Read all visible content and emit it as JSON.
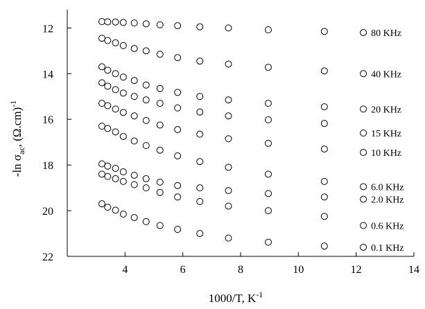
{
  "chart_data": {
    "type": "scatter",
    "title": "",
    "xlabel": "1000/T, K",
    "xlabel_sup": "-1",
    "ylabel_prefix": "-ln σ",
    "ylabel_sub": "ac",
    "ylabel_mid": ", (Ω.cm)",
    "ylabel_sup": "-1",
    "xlim": [
      2,
      14
    ],
    "ylim": [
      22,
      11.2
    ],
    "y_inverted": true,
    "x_ticks": [
      4,
      6,
      8,
      10,
      12,
      14
    ],
    "y_ticks": [
      12,
      14,
      16,
      18,
      20,
      22
    ],
    "x_tick_labels": [
      "4",
      "6",
      "8",
      "10",
      "12",
      "14"
    ],
    "y_tick_labels": [
      "12",
      "14",
      "16",
      "18",
      "20",
      "22"
    ],
    "grid": false,
    "legend": "none",
    "marker": "open-circle",
    "x": [
      3.2,
      3.4,
      3.67,
      3.94,
      4.32,
      4.73,
      5.21,
      5.82,
      6.59,
      7.58,
      8.96,
      10.9
    ],
    "series": [
      {
        "name": "80 KHz",
        "label_y": 12.2,
        "values": [
          11.72,
          11.73,
          11.74,
          11.76,
          11.78,
          11.82,
          11.86,
          11.9,
          11.95,
          12.0,
          12.08,
          12.15
        ]
      },
      {
        "name": "40 KHz",
        "label_y": 14.0,
        "values": [
          12.45,
          12.55,
          12.65,
          12.77,
          12.9,
          13.0,
          13.15,
          13.3,
          13.45,
          13.58,
          13.72,
          13.88
        ]
      },
      {
        "name": "20 KHz",
        "label_y": 15.55,
        "values": [
          13.7,
          13.85,
          14.0,
          14.15,
          14.3,
          14.5,
          14.65,
          14.82,
          15.0,
          15.15,
          15.3,
          15.45
        ]
      },
      {
        "name": "15 KHz",
        "label_y": 16.6,
        "values": [
          14.4,
          14.55,
          14.7,
          14.85,
          15.0,
          15.15,
          15.3,
          15.5,
          15.68,
          15.85,
          16.02,
          16.18
        ]
      },
      {
        "name": "10 KHz",
        "label_y": 17.45,
        "values": [
          15.3,
          15.4,
          15.55,
          15.7,
          15.85,
          16.05,
          16.25,
          16.45,
          16.65,
          16.85,
          17.05,
          17.3
        ]
      },
      {
        "name": "6.0 KHz",
        "label_y": 18.95,
        "values": [
          16.3,
          16.4,
          16.55,
          16.75,
          16.95,
          17.15,
          17.35,
          17.6,
          17.85,
          18.1,
          18.4,
          18.72
        ]
      },
      {
        "name": "2.0 KHz",
        "label_y": 19.5,
        "values": [
          17.95,
          18.05,
          18.15,
          18.3,
          18.45,
          18.6,
          18.75,
          18.9,
          19.0,
          19.12,
          19.25,
          19.4
        ]
      },
      {
        "name": "0.6 KHz",
        "label_y": 20.65,
        "values": [
          18.4,
          18.5,
          18.6,
          18.72,
          18.86,
          19.0,
          19.2,
          19.4,
          19.6,
          19.8,
          20.0,
          20.25
        ]
      },
      {
        "name": "0.1 KHz",
        "label_y": 21.6,
        "values": [
          19.7,
          19.85,
          19.98,
          20.15,
          20.3,
          20.48,
          20.65,
          20.82,
          21.0,
          21.2,
          21.38,
          21.55
        ]
      }
    ],
    "series_label_x": 12.25
  }
}
